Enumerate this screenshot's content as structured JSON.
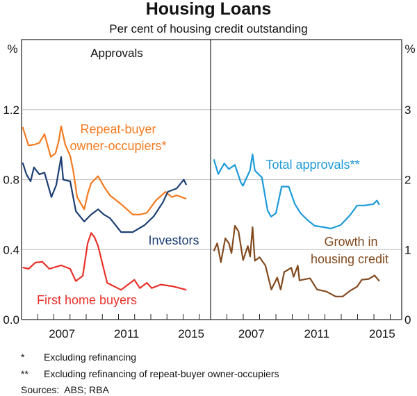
{
  "chart_data": {
    "type": "line",
    "title": "Housing Loans",
    "subtitle": "Per cent of housing credit outstanding",
    "panels": [
      {
        "title": "Approvals",
        "ylabel": "%",
        "ylim": [
          0,
          1.6
        ],
        "yticks": [
          "0.0",
          "0.4",
          "0.8",
          "1.2"
        ],
        "yticks_values": [
          0,
          0.4,
          0.8,
          1.2
        ],
        "xlim": [
          2005,
          2016.7
        ],
        "xticks": [
          "2007",
          "2011",
          "2015"
        ],
        "grid": true,
        "series": [
          {
            "name": "Repeat-buyer owner-occupiers*",
            "label_lines": [
              "Repeat-buyer",
              "owner-occupiers*"
            ],
            "color": "#F47B20",
            "x": [
              2005.07,
              2005.43,
              2005.8,
              2006.1,
              2006.42,
              2006.6,
              2006.81,
              2007.1,
              2007.3,
              2007.45,
              2007.7,
              2008.01,
              2008.2,
              2008.44,
              2008.88,
              2009.1,
              2009.31,
              2009.74,
              2010.1,
              2010.47,
              2011.16,
              2011.89,
              2012.3,
              2012.75,
              2013.31,
              2013.91,
              2014.3,
              2014.6,
              2015.2
            ],
            "y": [
              1.1,
              0.995,
              1.0,
              1.01,
              1.06,
              1.0,
              0.93,
              0.95,
              1.02,
              1.105,
              1.0,
              0.935,
              0.85,
              0.7,
              0.63,
              0.72,
              0.78,
              0.82,
              0.76,
              0.71,
              0.66,
              0.6,
              0.6,
              0.61,
              0.68,
              0.73,
              0.7,
              0.71,
              0.69
            ]
          },
          {
            "name": "Investors",
            "label_lines": [
              "Investors"
            ],
            "color": "#1C3F74",
            "x": [
              2005.07,
              2005.3,
              2005.56,
              2005.77,
              2006.1,
              2006.42,
              2006.85,
              2007.15,
              2007.45,
              2007.58,
              2008.01,
              2008.36,
              2008.88,
              2009.3,
              2009.74,
              2010.1,
              2010.47,
              2011.16,
              2011.89,
              2012.62,
              2013.18,
              2013.75,
              2014.05,
              2014.61,
              2015.04,
              2015.2
            ],
            "y": [
              0.897,
              0.83,
              0.79,
              0.87,
              0.83,
              0.84,
              0.7,
              0.77,
              0.93,
              0.8,
              0.79,
              0.62,
              0.56,
              0.6,
              0.63,
              0.6,
              0.58,
              0.5,
              0.5,
              0.54,
              0.59,
              0.67,
              0.73,
              0.75,
              0.8,
              0.77
            ]
          },
          {
            "name": "First home buyers",
            "label_lines": [
              "First home buyers"
            ],
            "color": "#E8312A",
            "x": [
              2005.07,
              2005.43,
              2005.86,
              2006.29,
              2006.72,
              2007.45,
              2008.01,
              2008.36,
              2008.79,
              2009.09,
              2009.31,
              2009.52,
              2009.74,
              2010.04,
              2010.3,
              2011.16,
              2011.98,
              2012.32,
              2012.75,
              2013.06,
              2013.62,
              2014.35,
              2015.2
            ],
            "y": [
              0.298,
              0.29,
              0.326,
              0.33,
              0.29,
              0.31,
              0.29,
              0.22,
              0.25,
              0.436,
              0.495,
              0.47,
              0.42,
              0.306,
              0.21,
              0.17,
              0.227,
              0.18,
              0.21,
              0.18,
              0.2,
              0.19,
              0.17
            ]
          }
        ]
      },
      {
        "title": "",
        "ylabel": "%",
        "ylim": [
          0,
          4
        ],
        "yticks": [
          "0",
          "1",
          "2",
          "3"
        ],
        "yticks_values": [
          0,
          1,
          2,
          3
        ],
        "xlim": [
          2005,
          2016.7
        ],
        "xticks": [
          "2007",
          "2011",
          "2015"
        ],
        "grid": true,
        "series": [
          {
            "name": "Total approvals**",
            "label_lines": [
              "Total approvals**"
            ],
            "color": "#1D9ADB",
            "x": [
              2005.2,
              2005.47,
              2005.84,
              2006.12,
              2006.49,
              2006.85,
              2006.98,
              2007.41,
              2007.57,
              2007.71,
              2008.14,
              2008.49,
              2008.7,
              2009.0,
              2009.35,
              2009.78,
              2010.16,
              2010.51,
              2010.94,
              2011.37,
              2011.93,
              2012.36,
              2012.96,
              2013.53,
              2013.97,
              2014.4,
              2014.96,
              2015.18,
              2015.33
            ],
            "y": [
              2.29,
              2.08,
              2.23,
              2.15,
              2.21,
              1.96,
              1.91,
              2.13,
              2.36,
              2.13,
              2.03,
              1.56,
              1.47,
              1.52,
              1.9,
              1.9,
              1.65,
              1.52,
              1.42,
              1.34,
              1.32,
              1.3,
              1.35,
              1.49,
              1.63,
              1.63,
              1.65,
              1.7,
              1.64
            ]
          },
          {
            "name": "Growth in housing credit",
            "label_lines": [
              "Growth in",
              "housing credit"
            ],
            "color": "#834A1E",
            "x": [
              2005.2,
              2005.41,
              2005.63,
              2005.9,
              2006.12,
              2006.28,
              2006.49,
              2006.71,
              2006.99,
              2007.28,
              2007.42,
              2007.57,
              2007.71,
              2008.0,
              2008.36,
              2008.72,
              2009.08,
              2009.29,
              2009.51,
              2009.94,
              2010.08,
              2010.34,
              2010.44,
              2011.09,
              2011.52,
              2012.09,
              2012.66,
              2013.09,
              2013.53,
              2013.97,
              2014.26,
              2014.68,
              2015.04,
              2015.33
            ],
            "y": [
              0.98,
              1.09,
              0.82,
              1.16,
              1.09,
              0.95,
              1.34,
              1.26,
              0.85,
              1.05,
              0.9,
              1.32,
              0.84,
              0.89,
              0.77,
              0.43,
              0.6,
              0.43,
              0.68,
              0.74,
              0.61,
              0.77,
              0.56,
              0.59,
              0.43,
              0.4,
              0.33,
              0.33,
              0.41,
              0.47,
              0.57,
              0.58,
              0.63,
              0.55
            ]
          }
        ]
      }
    ],
    "footnotes": [
      {
        "mark": "*",
        "text": "Excluding refinancing"
      },
      {
        "mark": "**",
        "text": "Excluding refinancing of repeat-buyer owner-occupiers"
      }
    ],
    "sources": "Sources:  ABS; RBA"
  }
}
